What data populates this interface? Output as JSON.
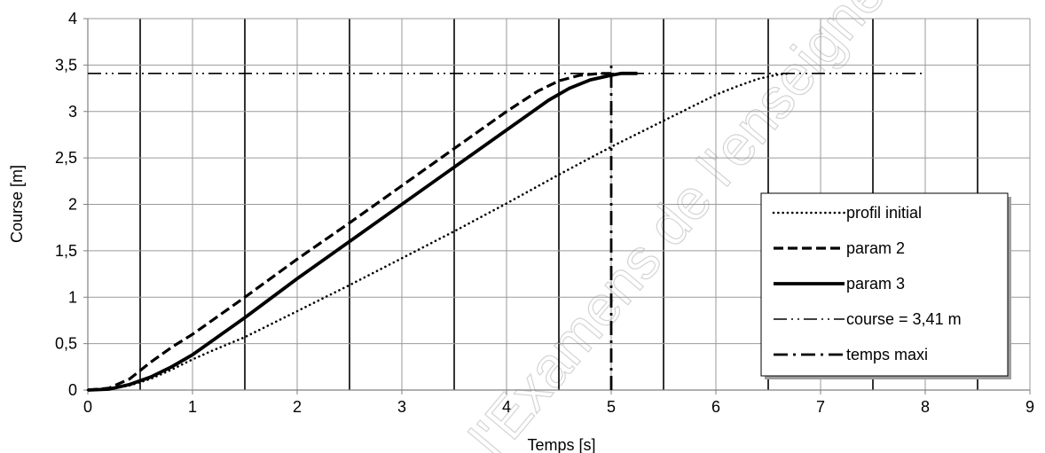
{
  "chart_data": {
    "type": "line",
    "xlabel": "Temps [s]",
    "ylabel": "Course [m]",
    "xlim": [
      0,
      9
    ],
    "ylim": [
      0,
      4
    ],
    "x_ticks": [
      "0",
      "1",
      "2",
      "3",
      "4",
      "5",
      "6",
      "7",
      "8",
      "9"
    ],
    "y_ticks": [
      "0",
      "0,5",
      "1",
      "1,5",
      "2",
      "2,5",
      "3",
      "3,5",
      "4"
    ],
    "grid": true,
    "legend_position": "bottom-right",
    "series": [
      {
        "name": "profil initial",
        "style": "dotted",
        "x": [
          0,
          0.2,
          0.4,
          0.6,
          0.8,
          1.0,
          1.2,
          1.5,
          2.0,
          2.5,
          3.0,
          3.5,
          4.0,
          4.5,
          5.0,
          5.5,
          6.0,
          6.2,
          6.4,
          6.6,
          6.7
        ],
        "y": [
          0,
          0.01,
          0.05,
          0.12,
          0.22,
          0.33,
          0.43,
          0.57,
          0.85,
          1.13,
          1.42,
          1.71,
          2.01,
          2.32,
          2.62,
          2.9,
          3.18,
          3.27,
          3.35,
          3.4,
          3.41
        ]
      },
      {
        "name": "param 2",
        "style": "dashed",
        "x": [
          0,
          0.2,
          0.4,
          0.6,
          0.8,
          1.0,
          1.5,
          2.0,
          2.5,
          3.0,
          3.5,
          4.0,
          4.3,
          4.5,
          4.7,
          4.9,
          5.0
        ],
        "y": [
          0,
          0.02,
          0.12,
          0.3,
          0.46,
          0.6,
          1.0,
          1.41,
          1.8,
          2.2,
          2.6,
          3.0,
          3.22,
          3.33,
          3.39,
          3.41,
          3.41
        ]
      },
      {
        "name": "param 3",
        "style": "solid",
        "x": [
          0,
          0.2,
          0.4,
          0.6,
          0.8,
          1.0,
          1.5,
          2.0,
          2.5,
          3.0,
          3.5,
          4.0,
          4.4,
          4.6,
          4.8,
          5.0,
          5.1,
          5.25
        ],
        "y": [
          0,
          0.01,
          0.06,
          0.14,
          0.25,
          0.38,
          0.78,
          1.2,
          1.6,
          2.0,
          2.4,
          2.8,
          3.12,
          3.25,
          3.34,
          3.39,
          3.41,
          3.41
        ]
      },
      {
        "name": "course = 3,41 m",
        "style": "dash-dot-dot",
        "x": [
          0,
          8
        ],
        "y": [
          3.41,
          3.41
        ]
      },
      {
        "name": "temps maxi",
        "style": "dash-dot",
        "x": [
          5,
          5
        ],
        "y": [
          0,
          3.5
        ]
      }
    ]
  },
  "watermark": "l'Examens de l'enseignement"
}
